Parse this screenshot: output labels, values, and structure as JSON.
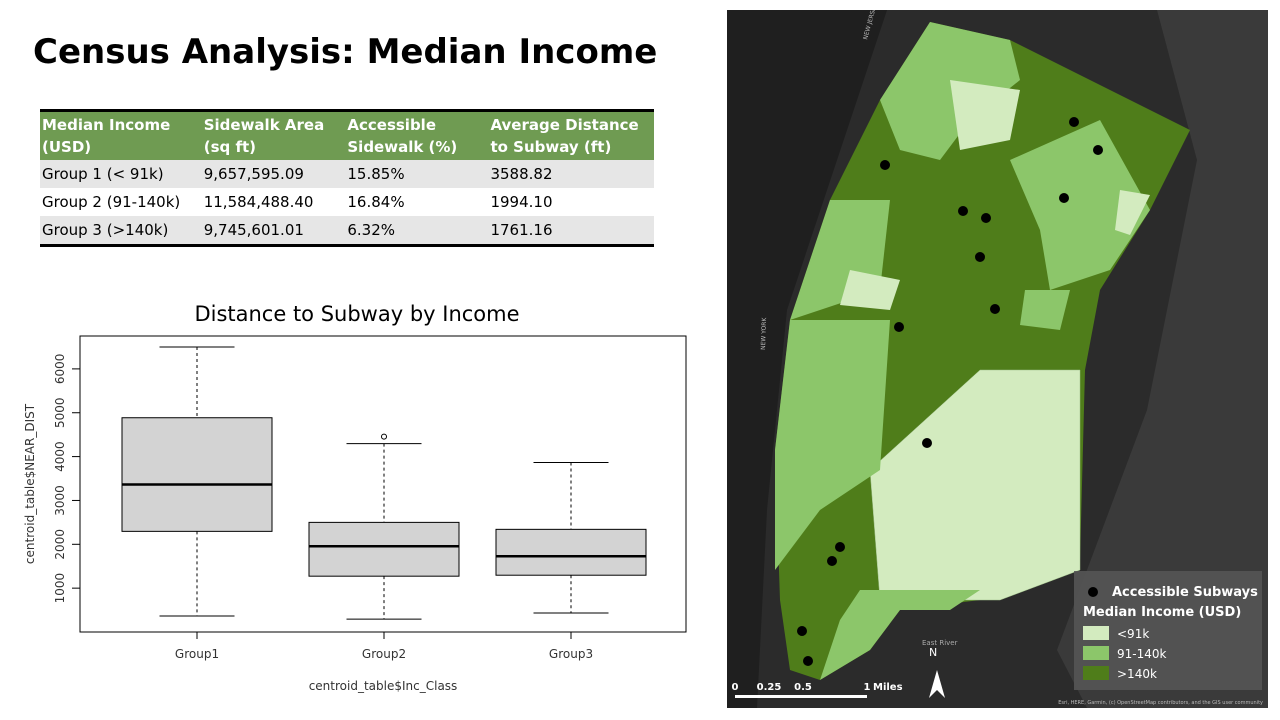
{
  "title": "Census Analysis: Median Income",
  "table": {
    "header": [
      "Median Income (USD)",
      "Sidewalk Area  (sq ft)",
      "Accessible Sidewalk (%)",
      "Average Distance to Subway (ft)"
    ],
    "rows": [
      [
        "Group 1 (< 91k)",
        "9,657,595.09",
        "15.85%",
        "3588.82"
      ],
      [
        "Group 2 (91-140k)",
        "11,584,488.40",
        "16.84%",
        "1994.10"
      ],
      [
        "Group 3 (>140k)",
        "9,745,601.01",
        "6.32%",
        "1761.16"
      ]
    ]
  },
  "chart_data": {
    "type": "box",
    "title": "Distance to Subway by Income",
    "xlabel": "centroid_table$Inc_Class",
    "ylabel": "centroid_table$NEAR_DIST",
    "categories": [
      "Group1",
      "Group2",
      "Group3"
    ],
    "boxes": [
      {
        "whisker_low": 364,
        "q1": 2295,
        "median": 3364,
        "q3": 4886,
        "whisker_high": 6500,
        "outliers": []
      },
      {
        "whisker_low": 295,
        "q1": 1273,
        "median": 1955,
        "q3": 2500,
        "whisker_high": 4295,
        "outliers": [
          4455
        ]
      },
      {
        "whisker_low": 432,
        "q1": 1295,
        "median": 1727,
        "q3": 2341,
        "whisker_high": 3864,
        "outliers": []
      }
    ],
    "color": "#d3d3d3",
    "ylim": [
      0,
      6750
    ],
    "yticks": [
      1000,
      2000,
      3000,
      4000,
      5000,
      6000
    ]
  },
  "map": {
    "legend": {
      "point": "Accessible Subways",
      "title": "Median Income (USD)",
      "classes": [
        {
          "label": "<91k",
          "color": "#d3ebbf"
        },
        {
          "label": "91-140k",
          "color": "#8cc66a"
        },
        {
          "label": ">140k",
          "color": "#4f7d1a"
        }
      ]
    },
    "scale": [
      "0",
      "0.25",
      "0.5",
      "1",
      "Miles"
    ],
    "north": "N",
    "labels": [
      "NEW JERSEY",
      "NEW YORK",
      "East River"
    ],
    "attribution": "Esri, HERE, Garmin, (c) OpenStreetMap contributors, and the GIS user community"
  }
}
